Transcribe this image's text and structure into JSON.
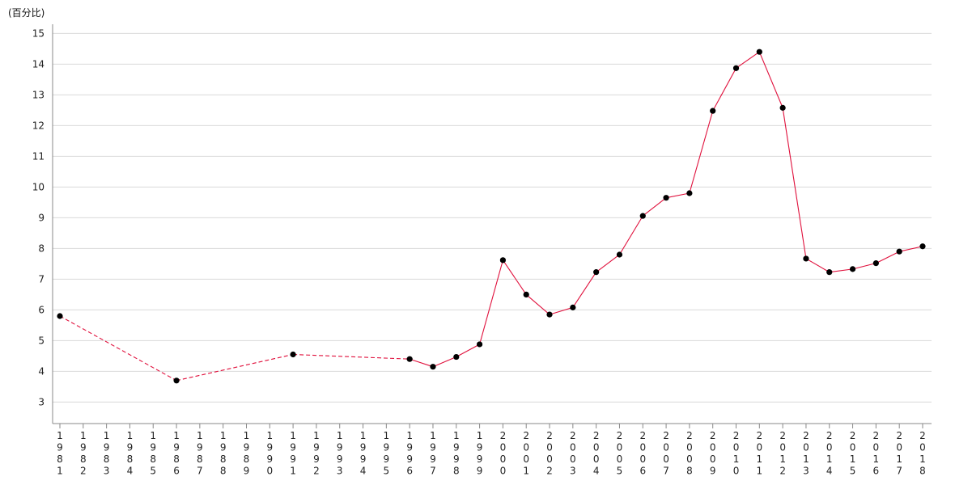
{
  "chart_data": {
    "type": "line",
    "ylabel": "(百分比)",
    "ylim": [
      2.3,
      15.3
    ],
    "yticks": [
      3,
      4,
      5,
      6,
      7,
      8,
      9,
      10,
      11,
      12,
      13,
      14,
      15
    ],
    "grid": true,
    "x": [
      1981,
      1982,
      1983,
      1984,
      1985,
      1986,
      1987,
      1988,
      1989,
      1990,
      1991,
      1992,
      1993,
      1994,
      1995,
      1996,
      1997,
      1998,
      1999,
      2000,
      2001,
      2002,
      2003,
      2004,
      2005,
      2006,
      2007,
      2008,
      2009,
      2010,
      2011,
      2012,
      2013,
      2014,
      2015,
      2016,
      2017,
      2018
    ],
    "xtick_labels": [
      "1981",
      "1982",
      "1983",
      "1984",
      "1985",
      "1986",
      "1987",
      "1988",
      "1989",
      "1990",
      "1991",
      "1992",
      "1993",
      "1994",
      "1995",
      "1996",
      "1997",
      "1998",
      "1999",
      "2000",
      "2001",
      "2002",
      "2003",
      "2004",
      "2005",
      "2006",
      "2007",
      "2008",
      "2009",
      "2010",
      "2011",
      "2012",
      "2013",
      "2014",
      "2015",
      "2016",
      "2017",
      "2018"
    ],
    "series": [
      {
        "points": [
          [
            1981,
            5.8
          ],
          [
            1986,
            3.7
          ],
          [
            1991,
            4.55
          ],
          [
            1996,
            4.4
          ],
          [
            1997,
            4.15
          ],
          [
            1998,
            4.47
          ],
          [
            1999,
            4.88
          ],
          [
            2000,
            7.62
          ],
          [
            2001,
            6.5
          ],
          [
            2002,
            5.85
          ],
          [
            2003,
            6.08
          ],
          [
            2004,
            7.23
          ],
          [
            2005,
            7.8
          ],
          [
            2006,
            9.06
          ],
          [
            2007,
            9.65
          ],
          [
            2008,
            9.8
          ],
          [
            2009,
            12.48
          ],
          [
            2010,
            13.87
          ],
          [
            2011,
            14.4
          ],
          [
            2012,
            12.58
          ],
          [
            2013,
            7.67
          ],
          [
            2014,
            7.23
          ],
          [
            2015,
            7.33
          ],
          [
            2016,
            7.52
          ],
          [
            2017,
            7.9
          ],
          [
            2018,
            8.07
          ]
        ],
        "dashed_until": 1996,
        "color": "#e0103c",
        "marker_color": "#000000"
      }
    ]
  }
}
